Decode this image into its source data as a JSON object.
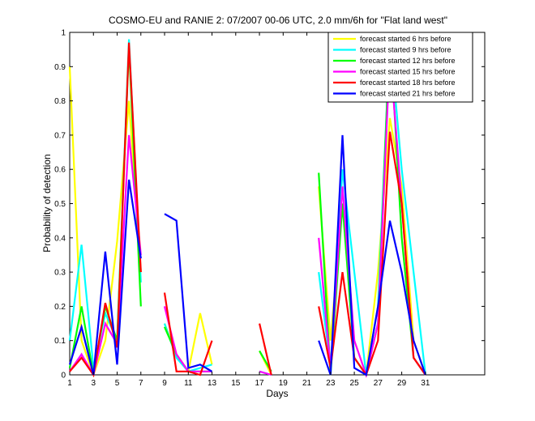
{
  "chart_data": {
    "type": "line",
    "title": "COSMO-EU and RANIE 2: 07/2007 00-06 UTC, 2.0 mm/6h for \"Flat land west\"",
    "xlabel": "Days",
    "ylabel": "Probability of detection",
    "xlim": [
      1,
      36
    ],
    "ylim": [
      0,
      1
    ],
    "xticks": [
      1,
      3,
      5,
      7,
      9,
      11,
      13,
      15,
      17,
      19,
      21,
      23,
      25,
      27,
      29,
      31
    ],
    "yticks": [
      0,
      0.1,
      0.2,
      0.3,
      0.4,
      0.5,
      0.6,
      0.7,
      0.8,
      0.9,
      1
    ],
    "xtick_labels": [
      "1",
      "3",
      "5",
      "7",
      "9",
      "11",
      "13",
      "15",
      "17",
      "19",
      "21",
      "23",
      "25",
      "27",
      "29",
      "31"
    ],
    "ytick_labels": [
      "0",
      "0.1",
      "0.2",
      "0.3",
      "0.4",
      "0.5",
      "0.6",
      "0.7",
      "0.8",
      "0.9",
      "1"
    ],
    "legend_position": "top-right",
    "grid": false,
    "x": [
      1,
      2,
      3,
      4,
      5,
      6,
      7,
      8,
      9,
      10,
      11,
      12,
      13,
      14,
      15,
      16,
      17,
      18,
      19,
      20,
      21,
      22,
      23,
      24,
      25,
      26,
      27,
      28,
      29,
      30,
      31
    ],
    "series": [
      {
        "name": "forecast started 6 hrs before",
        "color": "#ffff00",
        "values": [
          0.9,
          0.1,
          0.0,
          0.1,
          0.39,
          0.8,
          0.3,
          null,
          0.15,
          0.06,
          0.01,
          0.18,
          0.03,
          null,
          null,
          null,
          0.07,
          0.0,
          null,
          0.0,
          null,
          0.55,
          0.1,
          0.5,
          0.1,
          0.0,
          0.3,
          0.75,
          0.55,
          0.1,
          0.0
        ]
      },
      {
        "name": "forecast started 9 hrs before",
        "color": "#00ffff",
        "values": [
          0.1,
          0.38,
          0.02,
          0.18,
          0.1,
          0.98,
          0.27,
          null,
          0.15,
          0.05,
          0.01,
          0.02,
          0.03,
          null,
          null,
          null,
          0.01,
          0.0,
          null,
          null,
          null,
          0.3,
          0.02,
          0.6,
          0.3,
          0.0,
          0.2,
          0.99,
          0.6,
          0.3,
          0.0
        ]
      },
      {
        "name": "forecast started 12 hrs before",
        "color": "#00ff00",
        "values": [
          0.02,
          0.2,
          0.0,
          0.2,
          0.1,
          0.96,
          0.2,
          null,
          0.14,
          0.06,
          0.01,
          0.01,
          0.01,
          null,
          null,
          null,
          0.07,
          0.01,
          null,
          null,
          null,
          0.59,
          0.0,
          0.5,
          0.05,
          0.0,
          0.15,
          1.0,
          0.4,
          0.05,
          0.0
        ]
      },
      {
        "name": "forecast started 15 hrs before",
        "color": "#ff00ff",
        "values": [
          0.01,
          0.06,
          0.0,
          0.15,
          0.09,
          0.7,
          0.35,
          null,
          0.2,
          0.06,
          0.01,
          0.01,
          0.01,
          null,
          null,
          null,
          0.01,
          0.0,
          null,
          null,
          null,
          0.4,
          0.02,
          0.55,
          0.1,
          0.0,
          0.15,
          0.94,
          0.5,
          0.05,
          0.0
        ]
      },
      {
        "name": "forecast started 18 hrs before",
        "color": "#ff0000",
        "values": [
          0.01,
          0.05,
          0.0,
          0.21,
          0.08,
          0.97,
          0.3,
          null,
          0.24,
          0.01,
          0.01,
          0.0,
          0.1,
          null,
          null,
          null,
          0.15,
          0.0,
          null,
          null,
          null,
          0.2,
          0.02,
          0.3,
          0.05,
          0.0,
          0.1,
          0.71,
          0.5,
          0.05,
          0.0
        ]
      },
      {
        "name": "forecast started 21 hrs before",
        "color": "#0000ff",
        "values": [
          0.03,
          0.14,
          0.0,
          0.36,
          0.03,
          0.57,
          0.34,
          null,
          0.47,
          0.45,
          0.02,
          0.03,
          0.01,
          null,
          null,
          null,
          null,
          null,
          null,
          null,
          null,
          0.1,
          0.0,
          0.7,
          0.02,
          0.0,
          0.2,
          0.45,
          0.3,
          0.1,
          0.0
        ]
      }
    ]
  }
}
